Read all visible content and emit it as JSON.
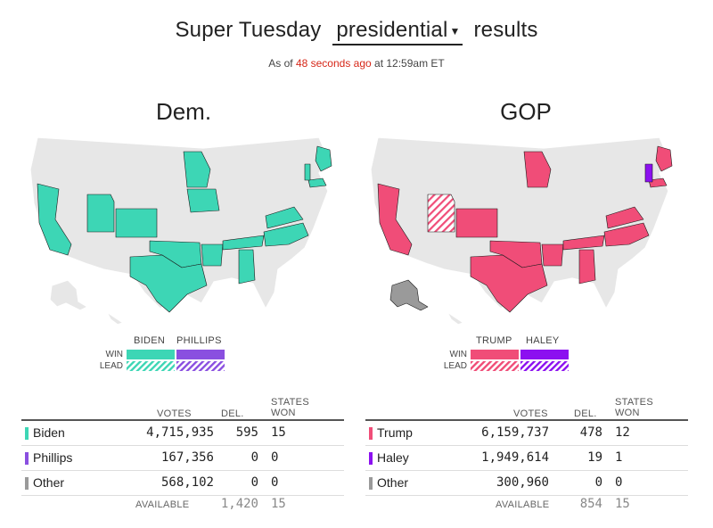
{
  "header": {
    "title_prefix": "Super Tuesday",
    "race_select": "presidential",
    "title_suffix": "results",
    "asof_prefix": "As of",
    "asof_elapsed": "48 seconds ago",
    "asof_suffix": "at 12:59am ET"
  },
  "colors": {
    "biden": "#3dd6b5",
    "phillips": "#8a4fe0",
    "trump": "#f04d78",
    "haley": "#8c10f0",
    "other": "#9a9a9a",
    "uncalled": "#e7e7e7"
  },
  "dem": {
    "title": "Dem.",
    "legend": {
      "candidates": [
        "BIDEN",
        "PHILLIPS"
      ],
      "win_label": "WIN",
      "lead_label": "LEAD"
    },
    "table": {
      "col_votes": "VOTES",
      "col_del": "DEL.",
      "col_states_1": "STATES",
      "col_states_2": "WON",
      "rows": [
        {
          "name": "Biden",
          "votes": "4,715,935",
          "del": "595",
          "won": "15",
          "color": "#3dd6b5"
        },
        {
          "name": "Phillips",
          "votes": "167,356",
          "del": "0",
          "won": "0",
          "color": "#8a4fe0"
        },
        {
          "name": "Other",
          "votes": "568,102",
          "del": "0",
          "won": "0",
          "color": "#9a9a9a"
        }
      ],
      "available_label": "AVAILABLE",
      "available_del": "1,420",
      "available_states": "15"
    }
  },
  "gop": {
    "title": "GOP",
    "legend": {
      "candidates": [
        "TRUMP",
        "HALEY"
      ],
      "win_label": "WIN",
      "lead_label": "LEAD"
    },
    "table": {
      "col_votes": "VOTES",
      "col_del": "DEL.",
      "col_states_1": "STATES",
      "col_states_2": "WON",
      "rows": [
        {
          "name": "Trump",
          "votes": "6,159,737",
          "del": "478",
          "won": "12",
          "color": "#f04d78"
        },
        {
          "name": "Haley",
          "votes": "1,949,614",
          "del": "19",
          "won": "1",
          "color": "#8c10f0"
        },
        {
          "name": "Other",
          "votes": "300,960",
          "del": "0",
          "won": "0",
          "color": "#9a9a9a"
        }
      ],
      "available_label": "AVAILABLE",
      "available_del": "854",
      "available_states": "15"
    }
  }
}
